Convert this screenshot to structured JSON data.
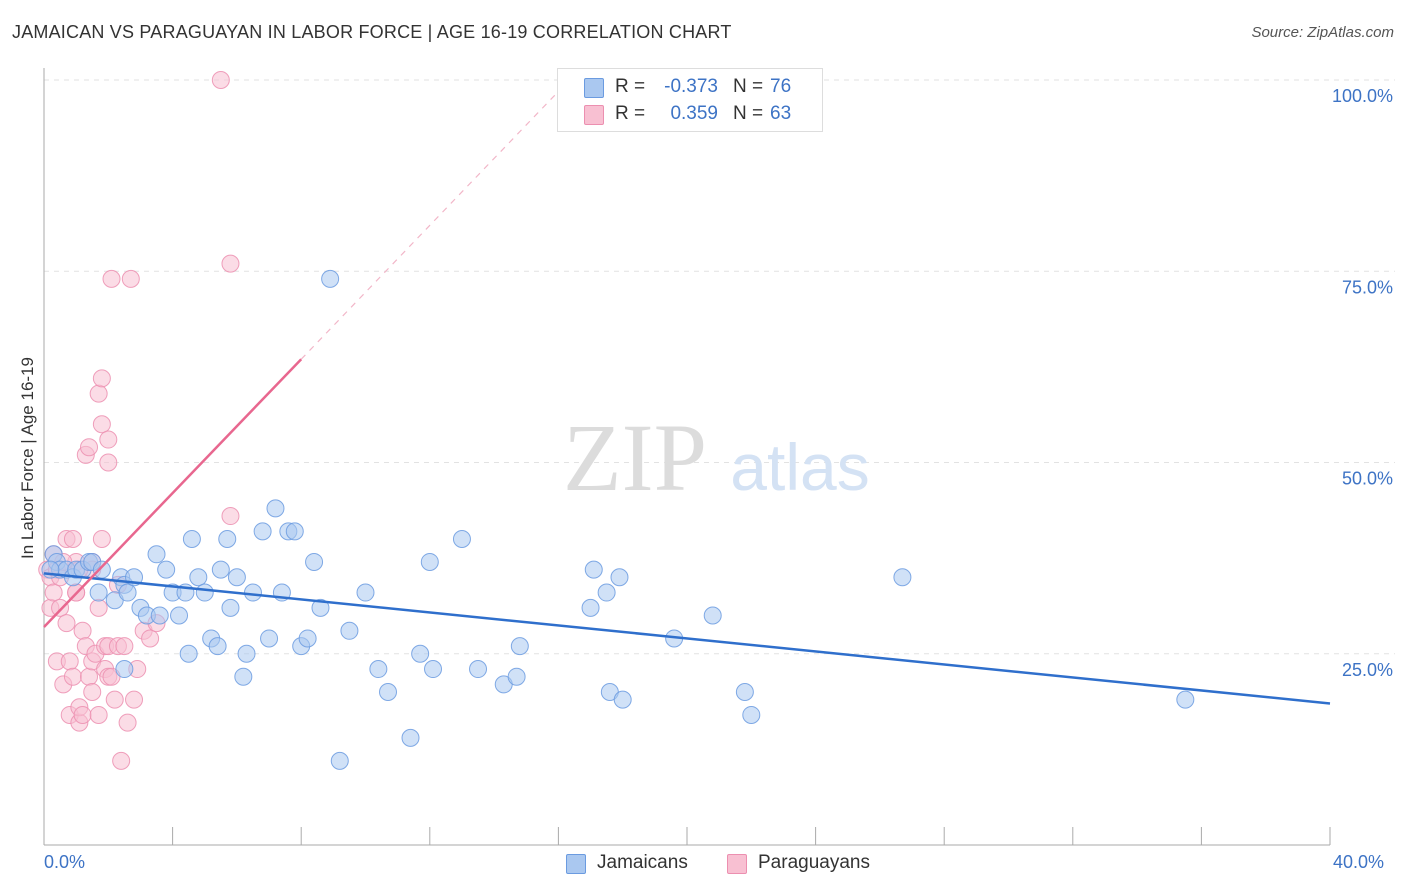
{
  "title": "JAMAICAN VS PARAGUAYAN IN LABOR FORCE | AGE 16-19 CORRELATION CHART",
  "source": "Source: ZipAtlas.com",
  "watermark": {
    "zip": "ZIP",
    "atlas": "atlas"
  },
  "legend_top": {
    "rows": [
      {
        "r_label": "R =",
        "r_value": "-0.373",
        "n_label": "N =",
        "n_value": "76",
        "color": "#aac8f0",
        "border": "#6b9be0"
      },
      {
        "r_label": "R =",
        "r_value": "0.359",
        "n_label": "N =",
        "n_value": "63",
        "color": "#f8c0d2",
        "border": "#ec8fb0"
      }
    ]
  },
  "legend_bottom": [
    {
      "label": "Jamaicans",
      "color": "#aac8f0",
      "border": "#6b9be0"
    },
    {
      "label": "Paraguayans",
      "color": "#f8c0d2",
      "border": "#ec8fb0"
    }
  ],
  "chart_data": {
    "type": "scatter",
    "title": "JAMAICAN VS PARAGUAYAN IN LABOR FORCE | AGE 16-19 CORRELATION CHART",
    "xlabel": "",
    "ylabel": "In Labor Force | Age 16-19",
    "xlim": [
      0,
      40
    ],
    "ylim": [
      0,
      100
    ],
    "x_tick_labels": [
      "0.0%",
      "40.0%"
    ],
    "y_tick_labels": [
      "25.0%",
      "50.0%",
      "75.0%",
      "100.0%"
    ],
    "y_ticks": [
      25,
      50,
      75,
      100
    ],
    "grid": true,
    "legend_position": "bottom-center",
    "series": [
      {
        "name": "Jamaicans",
        "color": "#6b9be0",
        "fill": "#aac8f0",
        "trend": {
          "x": [
            0,
            40
          ],
          "y": [
            35.5,
            18.5
          ],
          "color": "#2f6fcc"
        },
        "points": [
          [
            0.3,
            38
          ],
          [
            0.4,
            37
          ],
          [
            0.5,
            36
          ],
          [
            0.7,
            36
          ],
          [
            0.9,
            35
          ],
          [
            1.0,
            36
          ],
          [
            1.2,
            36
          ],
          [
            1.4,
            37
          ],
          [
            1.5,
            37
          ],
          [
            1.7,
            33
          ],
          [
            2.2,
            32
          ],
          [
            2.4,
            35
          ],
          [
            2.5,
            34
          ],
          [
            2.6,
            33
          ],
          [
            2.8,
            35
          ],
          [
            3.0,
            31
          ],
          [
            3.2,
            30
          ],
          [
            3.5,
            38
          ],
          [
            3.6,
            30
          ],
          [
            3.8,
            36
          ],
          [
            4.0,
            33
          ],
          [
            4.2,
            30
          ],
          [
            4.4,
            33
          ],
          [
            4.5,
            25
          ],
          [
            4.6,
            40
          ],
          [
            4.8,
            35
          ],
          [
            5.0,
            33
          ],
          [
            5.2,
            27
          ],
          [
            5.4,
            26
          ],
          [
            5.5,
            36
          ],
          [
            5.7,
            40
          ],
          [
            5.8,
            31
          ],
          [
            6.0,
            35
          ],
          [
            6.2,
            22
          ],
          [
            6.3,
            25
          ],
          [
            6.5,
            33
          ],
          [
            6.8,
            41
          ],
          [
            7.0,
            27
          ],
          [
            7.2,
            44
          ],
          [
            7.4,
            33
          ],
          [
            7.6,
            41
          ],
          [
            7.8,
            41
          ],
          [
            8.0,
            26
          ],
          [
            8.2,
            27
          ],
          [
            8.4,
            37
          ],
          [
            8.6,
            31
          ],
          [
            8.9,
            74
          ],
          [
            9.2,
            11
          ],
          [
            9.5,
            28
          ],
          [
            10.0,
            33
          ],
          [
            10.4,
            23
          ],
          [
            10.7,
            20
          ],
          [
            11.4,
            14
          ],
          [
            11.7,
            25
          ],
          [
            12.0,
            37
          ],
          [
            12.1,
            23
          ],
          [
            13.0,
            40
          ],
          [
            13.5,
            23
          ],
          [
            14.3,
            21
          ],
          [
            14.7,
            22
          ],
          [
            14.8,
            26
          ],
          [
            17.0,
            31
          ],
          [
            17.1,
            36
          ],
          [
            17.5,
            33
          ],
          [
            17.6,
            20
          ],
          [
            17.9,
            35
          ],
          [
            18.0,
            19
          ],
          [
            19.6,
            27
          ],
          [
            20.8,
            30
          ],
          [
            21.8,
            20
          ],
          [
            22.0,
            17
          ],
          [
            26.7,
            35
          ],
          [
            35.5,
            19
          ],
          [
            2.5,
            23
          ],
          [
            1.8,
            36
          ],
          [
            0.2,
            36
          ]
        ]
      },
      {
        "name": "Paraguayans",
        "color": "#ec8fb0",
        "fill": "#f8c0d2",
        "trend": {
          "x": [
            0,
            8
          ],
          "y": [
            28.5,
            63.5
          ],
          "color": "#e8678f",
          "dashed_extension": {
            "x": [
              8,
              16
            ],
            "y": [
              63.5,
              98.5
            ]
          }
        },
        "points": [
          [
            0.1,
            36
          ],
          [
            0.2,
            35
          ],
          [
            0.2,
            31
          ],
          [
            0.3,
            33
          ],
          [
            0.3,
            38
          ],
          [
            0.4,
            24
          ],
          [
            0.4,
            36
          ],
          [
            0.5,
            35
          ],
          [
            0.5,
            31
          ],
          [
            0.6,
            21
          ],
          [
            0.7,
            40
          ],
          [
            0.7,
            29
          ],
          [
            0.8,
            17
          ],
          [
            0.8,
            24
          ],
          [
            0.9,
            40
          ],
          [
            0.9,
            22
          ],
          [
            1.0,
            37
          ],
          [
            1.0,
            33
          ],
          [
            1.0,
            33
          ],
          [
            1.1,
            16
          ],
          [
            1.1,
            18
          ],
          [
            1.2,
            17
          ],
          [
            1.2,
            28
          ],
          [
            1.3,
            26
          ],
          [
            1.3,
            51
          ],
          [
            1.4,
            52
          ],
          [
            1.4,
            22
          ],
          [
            1.5,
            24
          ],
          [
            1.5,
            20
          ],
          [
            1.5,
            37
          ],
          [
            1.6,
            25
          ],
          [
            1.7,
            59
          ],
          [
            1.7,
            17
          ],
          [
            1.7,
            31
          ],
          [
            1.8,
            55
          ],
          [
            1.8,
            40
          ],
          [
            1.8,
            61
          ],
          [
            1.9,
            26
          ],
          [
            1.9,
            23
          ],
          [
            2.0,
            50
          ],
          [
            2.0,
            22
          ],
          [
            2.0,
            53
          ],
          [
            2.0,
            26
          ],
          [
            2.1,
            74
          ],
          [
            2.1,
            22
          ],
          [
            2.2,
            19
          ],
          [
            2.3,
            34
          ],
          [
            2.3,
            26
          ],
          [
            2.4,
            11
          ],
          [
            2.5,
            26
          ],
          [
            2.6,
            16
          ],
          [
            2.7,
            74
          ],
          [
            2.8,
            19
          ],
          [
            2.9,
            23
          ],
          [
            3.1,
            28
          ],
          [
            3.3,
            27
          ],
          [
            3.5,
            29
          ],
          [
            5.5,
            100
          ],
          [
            5.8,
            43
          ],
          [
            5.8,
            76
          ],
          [
            1.5,
            36
          ],
          [
            0.6,
            37
          ],
          [
            1.1,
            36
          ]
        ]
      }
    ]
  }
}
